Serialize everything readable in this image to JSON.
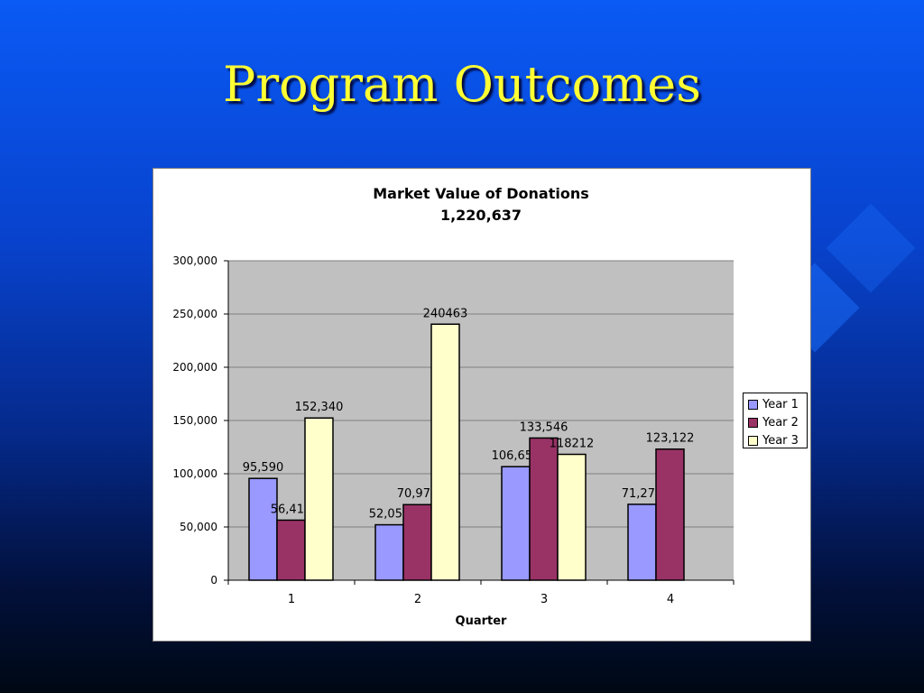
{
  "slide": {
    "title": "Program Outcomes"
  },
  "colors": {
    "background": "#0a4fe8",
    "title": "#ffff33",
    "plot_area": "#c0c0c0"
  },
  "chart_data": {
    "type": "bar",
    "title": "Market Value of Donations",
    "subtitle": "1,220,637",
    "xlabel": "Quarter",
    "ylabel": "",
    "categories": [
      "1",
      "2",
      "3",
      "4"
    ],
    "ylim": [
      0,
      300000
    ],
    "yticks": [
      0,
      50000,
      100000,
      150000,
      200000,
      250000,
      300000
    ],
    "ytick_labels": [
      "0",
      "50,000",
      "100,000",
      "150,000",
      "200,000",
      "250,000",
      "300,000"
    ],
    "grid": true,
    "legend_position": "right",
    "series": [
      {
        "name": "Year 1",
        "color": "#9999ff",
        "values": [
          95590,
          52051,
          106651,
          71276
        ],
        "labels": [
          "95,590",
          "52,051",
          "106,651",
          "71,276"
        ]
      },
      {
        "name": "Year 2",
        "color": "#993366",
        "values": [
          56411,
          70975,
          133546,
          123122
        ],
        "labels": [
          "56,411",
          "70,975",
          "133,546",
          "123,122"
        ]
      },
      {
        "name": "Year 3",
        "color": "#ffffcc",
        "values": [
          152340,
          240463,
          118212,
          null
        ],
        "labels": [
          "152,340",
          "240463",
          "118212",
          null
        ]
      }
    ]
  }
}
